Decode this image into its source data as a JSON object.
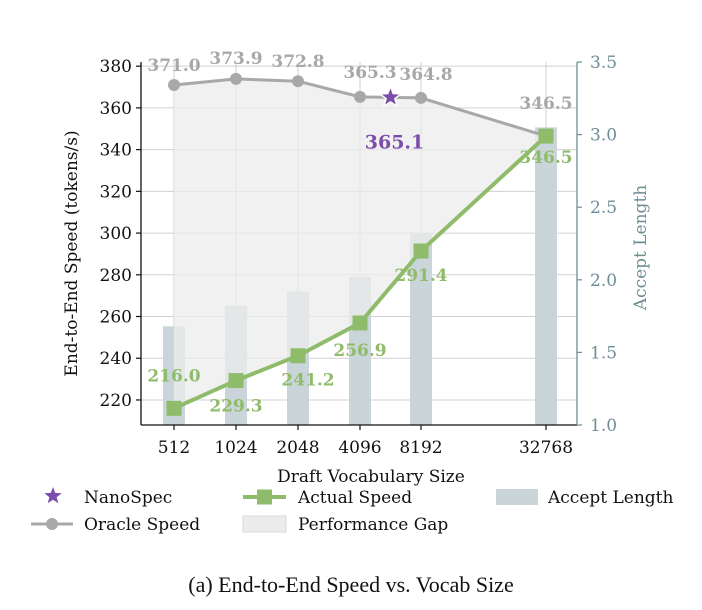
{
  "chart_data": {
    "type": "line",
    "categories": [
      "512",
      "1024",
      "2048",
      "4096",
      "8192",
      "32768"
    ],
    "xlabel": "Draft Vocabulary Size",
    "ylabel": "End-to-End Speed (tokens/s)",
    "ylabel_right": "Accept Length",
    "ylim": [
      208,
      382
    ],
    "yticks": [
      220,
      240,
      260,
      280,
      300,
      320,
      340,
      360,
      380
    ],
    "ylim_right": [
      1.0,
      3.5
    ],
    "yticks_right": [
      "1.0",
      "1.5",
      "2.0",
      "2.5",
      "3.0",
      "3.5"
    ],
    "grid": true,
    "series": [
      {
        "name": "Oracle Speed",
        "kind": "line",
        "values": [
          371.0,
          373.9,
          372.8,
          365.3,
          364.8,
          346.5
        ],
        "labels": [
          "371.0",
          "373.9",
          "372.8",
          "365.3",
          "364.8",
          "346.5"
        ],
        "color": "#a8a8a8"
      },
      {
        "name": "Actual Speed",
        "kind": "line",
        "values": [
          216.0,
          229.3,
          241.2,
          256.9,
          291.4,
          346.5
        ],
        "labels": [
          "216.0",
          "229.3",
          "241.2",
          "256.9",
          "291.4",
          "346.5"
        ],
        "color": "#8fbc6b"
      },
      {
        "name": "Accept Length",
        "kind": "bar",
        "axis": "right",
        "values": [
          1.68,
          1.82,
          1.92,
          2.02,
          2.32,
          3.05
        ],
        "color": "#c9d5d9"
      },
      {
        "name": "Performance Gap",
        "kind": "area",
        "color": "#ececec"
      }
    ],
    "nanospec": {
      "name": "NanoSpec",
      "x": 3.5,
      "value": 365.1,
      "label": "365.1",
      "color": "#7c4dab"
    },
    "legend": [
      "NanoSpec",
      "Oracle Speed",
      "Actual Speed",
      "Performance Gap",
      "Accept Length"
    ],
    "legend_placement": "bottom"
  },
  "caption": "(a) End-to-End Speed vs. Vocab Size"
}
